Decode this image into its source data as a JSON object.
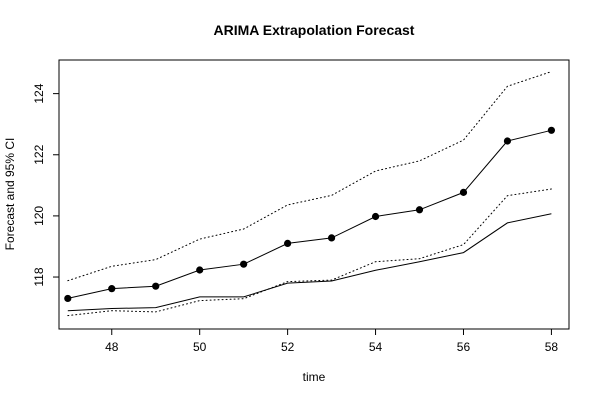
{
  "chart_data": {
    "type": "line",
    "title": "ARIMA Extrapolation Forecast",
    "xlabel": "time",
    "ylabel": "Forecast and 95% CI",
    "xlim": [
      46.8,
      58.4
    ],
    "ylim": [
      116.3,
      125.1
    ],
    "x_ticks": [
      48,
      50,
      52,
      54,
      56,
      58
    ],
    "y_ticks": [
      118,
      120,
      122,
      124
    ],
    "grid": false,
    "x": [
      47,
      48,
      49,
      50,
      51,
      52,
      53,
      54,
      55,
      56,
      57,
      58
    ],
    "series": [
      {
        "role": "forecast",
        "style": "solid-with-points",
        "color": "#000000",
        "values": [
          117.3,
          117.62,
          117.7,
          118.23,
          118.42,
          119.1,
          119.28,
          119.98,
          120.2,
          120.77,
          122.45,
          122.8
        ]
      },
      {
        "role": "upper-95",
        "style": "dotted",
        "color": "#000000",
        "values": [
          117.88,
          118.35,
          118.57,
          119.24,
          119.57,
          120.36,
          120.67,
          121.47,
          121.8,
          122.48,
          124.24,
          124.72
        ]
      },
      {
        "role": "lower-95",
        "style": "dotted",
        "color": "#000000",
        "values": [
          116.74,
          116.9,
          116.86,
          117.23,
          117.29,
          117.85,
          117.9,
          118.5,
          118.6,
          119.06,
          120.66,
          120.88
        ]
      },
      {
        "role": "actual",
        "style": "solid",
        "color": "#000000",
        "values": [
          116.9,
          116.97,
          117.0,
          117.35,
          117.35,
          117.8,
          117.87,
          118.22,
          118.5,
          118.8,
          119.77,
          120.07
        ]
      }
    ]
  }
}
